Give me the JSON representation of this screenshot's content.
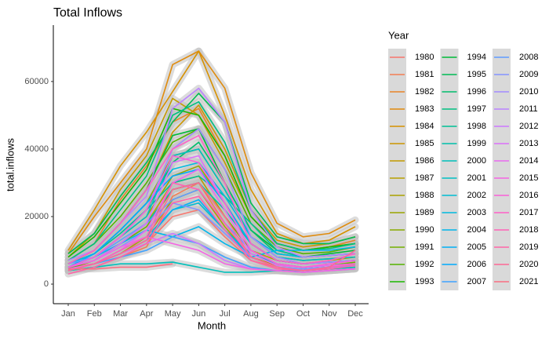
{
  "chart_data": {
    "type": "line",
    "title": "Total Inflows",
    "x_label": "Month",
    "y_label": "total.inflows",
    "legend_title": "Year",
    "legend_position": "right",
    "categories": [
      "Jan",
      "Feb",
      "Mar",
      "Apr",
      "May",
      "Jun",
      "Jul",
      "Aug",
      "Sep",
      "Oct",
      "Nov",
      "Dec"
    ],
    "ylim": [
      -5800,
      76700
    ],
    "yticks": [
      0,
      20000,
      40000,
      60000
    ],
    "series": [
      {
        "name": "1980",
        "color": "#F8766D",
        "values": [
          5000,
          6000,
          9000,
          12000,
          20000,
          22000,
          14000,
          7000,
          5000,
          4000,
          5000,
          6000
        ]
      },
      {
        "name": "1981",
        "color": "#F27D52",
        "values": [
          4000,
          5000,
          8000,
          11000,
          26000,
          30000,
          18000,
          8000,
          5000,
          4000,
          4500,
          5000
        ]
      },
      {
        "name": "1982",
        "color": "#E98428",
        "values": [
          7000,
          12000,
          25000,
          35000,
          48000,
          52000,
          38000,
          20000,
          12000,
          10000,
          11000,
          13000
        ]
      },
      {
        "name": "1983",
        "color": "#DF8B0D",
        "values": [
          9000,
          20000,
          30000,
          40000,
          65000,
          69000,
          58000,
          33000,
          18000,
          14000,
          15000,
          19000
        ]
      },
      {
        "name": "1984",
        "color": "#D69100",
        "values": [
          10000,
          22000,
          35000,
          45000,
          57000,
          69000,
          50000,
          28000,
          15000,
          12000,
          13000,
          17000
        ]
      },
      {
        "name": "1985",
        "color": "#CC9600",
        "values": [
          6000,
          10000,
          18000,
          28000,
          45000,
          53000,
          40000,
          22000,
          13000,
          11000,
          12000,
          14000
        ]
      },
      {
        "name": "1986",
        "color": "#C29A00",
        "values": [
          8000,
          15000,
          28000,
          38000,
          55000,
          50000,
          36000,
          20000,
          12000,
          10000,
          11000,
          12000
        ]
      },
      {
        "name": "1987",
        "color": "#B79F00",
        "values": [
          5000,
          7000,
          12000,
          18000,
          30000,
          32000,
          20000,
          10000,
          7000,
          6000,
          7000,
          8000
        ]
      },
      {
        "name": "1988",
        "color": "#AAA200",
        "values": [
          4000,
          6000,
          9000,
          14000,
          25000,
          28000,
          17000,
          8000,
          5500,
          5000,
          5500,
          6000
        ]
      },
      {
        "name": "1989",
        "color": "#9AA600",
        "values": [
          5000,
          8000,
          14000,
          20000,
          32000,
          35000,
          24000,
          12000,
          7000,
          6000,
          6500,
          7000
        ]
      },
      {
        "name": "1990",
        "color": "#88AA00",
        "values": [
          6000,
          9000,
          16000,
          24000,
          38000,
          40000,
          28000,
          14000,
          8000,
          7000,
          7500,
          8000
        ]
      },
      {
        "name": "1991",
        "color": "#72AF00",
        "values": [
          4500,
          7000,
          12000,
          17000,
          28000,
          30000,
          20000,
          10000,
          6000,
          5000,
          5500,
          6500
        ]
      },
      {
        "name": "1992",
        "color": "#54B300",
        "values": [
          7000,
          12000,
          20000,
          30000,
          42000,
          46000,
          34000,
          18000,
          11000,
          9000,
          9500,
          11000
        ]
      },
      {
        "name": "1993",
        "color": "#1BB700",
        "values": [
          8000,
          14000,
          24000,
          34000,
          52000,
          50000,
          38000,
          20000,
          12000,
          10000,
          11000,
          12000
        ]
      },
      {
        "name": "1994",
        "color": "#00BA38",
        "values": [
          6000,
          10000,
          18000,
          28000,
          44000,
          46000,
          30000,
          16000,
          10000,
          8000,
          9000,
          10000
        ]
      },
      {
        "name": "1995",
        "color": "#00BC54",
        "values": [
          9000,
          15000,
          26000,
          36000,
          48000,
          56500,
          48000,
          24000,
          14000,
          12000,
          12000,
          14000
        ]
      },
      {
        "name": "1996",
        "color": "#00BE6C",
        "values": [
          5000,
          8000,
          14000,
          22000,
          36000,
          42000,
          30000,
          16000,
          9000,
          8000,
          8500,
          9000
        ]
      },
      {
        "name": "1997",
        "color": "#00C081",
        "values": [
          7000,
          12000,
          22000,
          32000,
          50000,
          54000,
          42000,
          22000,
          12000,
          10000,
          10500,
          12000
        ]
      },
      {
        "name": "1998",
        "color": "#00C096",
        "values": [
          6000,
          9000,
          15000,
          22000,
          30000,
          32000,
          26000,
          18000,
          10000,
          8000,
          8500,
          9000
        ]
      },
      {
        "name": "1999",
        "color": "#00C0AA",
        "values": [
          5000,
          7000,
          12000,
          18000,
          28000,
          30000,
          22000,
          12000,
          7000,
          6000,
          6500,
          7000
        ]
      },
      {
        "name": "2000",
        "color": "#00C0BB",
        "values": [
          4000,
          5000,
          6000,
          6000,
          6500,
          5000,
          3500,
          3500,
          4000,
          4000,
          4500,
          5000
        ]
      },
      {
        "name": "2001",
        "color": "#00BFC4",
        "values": [
          5000,
          8000,
          14000,
          20000,
          38000,
          40000,
          28000,
          14000,
          8000,
          7000,
          7500,
          8000
        ]
      },
      {
        "name": "2002",
        "color": "#00BDD2",
        "values": [
          4500,
          6000,
          10000,
          14000,
          22000,
          24000,
          16000,
          9000,
          6000,
          5000,
          5500,
          6000
        ]
      },
      {
        "name": "2003",
        "color": "#00BAE0",
        "values": [
          6000,
          9000,
          16000,
          24000,
          34000,
          36000,
          26000,
          14000,
          9000,
          8000,
          8500,
          9000
        ]
      },
      {
        "name": "2004",
        "color": "#00B6EB",
        "values": [
          5000,
          8000,
          12000,
          16000,
          14000,
          17000,
          12000,
          8000,
          10000,
          10000,
          10000,
          11000
        ]
      },
      {
        "name": "2005",
        "color": "#00B0F6",
        "values": [
          4000,
          6000,
          9000,
          13000,
          22000,
          25000,
          16000,
          8000,
          5000,
          4500,
          5000,
          5500
        ]
      },
      {
        "name": "2006",
        "color": "#00AAFE",
        "values": [
          5000,
          9000,
          16000,
          24000,
          32000,
          34000,
          24000,
          12000,
          7000,
          6000,
          6500,
          7000
        ]
      },
      {
        "name": "2007",
        "color": "#3FA2FF",
        "values": [
          4000,
          6000,
          8000,
          10000,
          14000,
          12000,
          8000,
          5000,
          4000,
          3500,
          4000,
          4500
        ]
      },
      {
        "name": "2008",
        "color": "#619CFF",
        "values": [
          6000,
          8000,
          13000,
          18000,
          25000,
          28000,
          18000,
          10000,
          6000,
          5000,
          5500,
          6000
        ]
      },
      {
        "name": "2009",
        "color": "#8494FF",
        "values": [
          5000,
          7000,
          11000,
          16000,
          24000,
          22000,
          15000,
          8000,
          5000,
          4500,
          5000,
          5500
        ]
      },
      {
        "name": "2010",
        "color": "#A28BFF",
        "values": [
          5000,
          8000,
          14000,
          22000,
          40000,
          46000,
          34000,
          14000,
          8000,
          6000,
          6500,
          7000
        ]
      },
      {
        "name": "2011",
        "color": "#BA82FF",
        "values": [
          7000,
          10000,
          18000,
          26000,
          52000,
          58000,
          48000,
          22000,
          11000,
          8000,
          8500,
          9000
        ]
      },
      {
        "name": "2012",
        "color": "#CD79FF",
        "values": [
          4000,
          6000,
          9000,
          12000,
          15000,
          12000,
          7000,
          4500,
          4000,
          3500,
          4000,
          4500
        ]
      },
      {
        "name": "2013",
        "color": "#DC71FA",
        "values": [
          5000,
          7000,
          12000,
          18000,
          36000,
          38000,
          24000,
          10000,
          6000,
          5000,
          5500,
          6000
        ]
      },
      {
        "name": "2014",
        "color": "#E96AF0",
        "values": [
          4500,
          6000,
          10000,
          16000,
          30000,
          34000,
          22000,
          9000,
          5500,
          5000,
          5500,
          6000
        ]
      },
      {
        "name": "2015",
        "color": "#F564E3",
        "values": [
          5000,
          7000,
          11000,
          14000,
          12000,
          10000,
          6000,
          4500,
          4000,
          3500,
          4000,
          4500
        ]
      },
      {
        "name": "2016",
        "color": "#FB61D7",
        "values": [
          5000,
          8000,
          14000,
          22000,
          38000,
          36000,
          24000,
          10000,
          6000,
          5000,
          6000,
          7000
        ]
      },
      {
        "name": "2017",
        "color": "#FF61C8",
        "values": [
          6000,
          10000,
          18000,
          28000,
          40000,
          44000,
          30000,
          12000,
          7000,
          6000,
          7000,
          9000
        ]
      },
      {
        "name": "2018",
        "color": "#FF62B8",
        "values": [
          4000,
          6000,
          10000,
          14000,
          30000,
          28000,
          18000,
          8000,
          5000,
          4000,
          5000,
          6000
        ]
      },
      {
        "name": "2019",
        "color": "#FF65A8",
        "values": [
          3000,
          5000,
          8000,
          12000,
          24000,
          26000,
          16000,
          7000,
          4500,
          4000,
          4500,
          5500
        ]
      },
      {
        "name": "2020",
        "color": "#FD6996",
        "values": [
          4000,
          6000,
          9000,
          13000,
          28000,
          30000,
          20000,
          8000,
          5000,
          4000,
          5000,
          10000
        ]
      },
      {
        "name": "2021",
        "color": "#FA6F82",
        "values": [
          4500,
          4500,
          5000,
          5000,
          6000,
          null,
          null,
          null,
          null,
          null,
          null,
          null
        ]
      }
    ]
  }
}
